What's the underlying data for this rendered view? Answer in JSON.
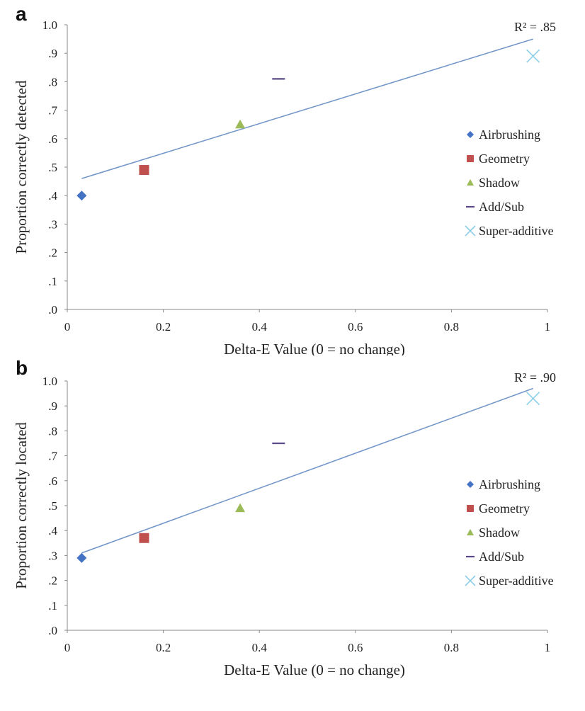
{
  "panels": [
    {
      "letter": "a"
    },
    {
      "letter": "b"
    }
  ],
  "chart_data": [
    {
      "type": "scatter",
      "title": "",
      "xlabel": "Delta-E Value  (0 = no change)",
      "ylabel": "Proportion correctly detected",
      "xlim": [
        0,
        1
      ],
      "ylim": [
        0,
        1
      ],
      "x_ticks": [
        "0",
        "0.2",
        "0.4",
        "0.6",
        "0.8",
        "1"
      ],
      "y_ticks": [
        ".0",
        ".1",
        ".2",
        ".3",
        ".4",
        ".5",
        ".6",
        ".7",
        ".8",
        ".9",
        "1.0"
      ],
      "grid": false,
      "legend_position": "right",
      "series": [
        {
          "name": "Airbrushing",
          "marker": "diamond",
          "color": "#4472C4",
          "x": [
            0.03
          ],
          "y": [
            0.4
          ]
        },
        {
          "name": "Geometry",
          "marker": "square",
          "color": "#C0504D",
          "x": [
            0.16
          ],
          "y": [
            0.49
          ]
        },
        {
          "name": "Shadow",
          "marker": "triangle",
          "color": "#9BBB59",
          "x": [
            0.36
          ],
          "y": [
            0.65
          ]
        },
        {
          "name": "Add/Sub",
          "marker": "dash",
          "color": "#5B4A8B",
          "x": [
            0.44
          ],
          "y": [
            0.81
          ]
        },
        {
          "name": "Super-additive",
          "marker": "x",
          "color": "#8ECFE8",
          "x": [
            0.97
          ],
          "y": [
            0.89
          ]
        }
      ],
      "trendline": {
        "x": [
          0.03,
          0.97
        ],
        "y": [
          0.46,
          0.95
        ],
        "color": "#7397C9",
        "label": "R² = .85"
      }
    },
    {
      "type": "scatter",
      "title": "",
      "xlabel": "Delta-E Value  (0 = no change)",
      "ylabel": "Proportion correctly located",
      "xlim": [
        0,
        1
      ],
      "ylim": [
        0,
        1
      ],
      "x_ticks": [
        "0",
        "0.2",
        "0.4",
        "0.6",
        "0.8",
        "1"
      ],
      "y_ticks": [
        ".0",
        ".1",
        ".2",
        ".3",
        ".4",
        ".5",
        ".6",
        ".7",
        ".8",
        ".9",
        "1.0"
      ],
      "grid": false,
      "legend_position": "right",
      "series": [
        {
          "name": "Airbrushing",
          "marker": "diamond",
          "color": "#4472C4",
          "x": [
            0.03
          ],
          "y": [
            0.29
          ]
        },
        {
          "name": "Geometry",
          "marker": "square",
          "color": "#C0504D",
          "x": [
            0.16
          ],
          "y": [
            0.37
          ]
        },
        {
          "name": "Shadow",
          "marker": "triangle",
          "color": "#9BBB59",
          "x": [
            0.36
          ],
          "y": [
            0.49
          ]
        },
        {
          "name": "Add/Sub",
          "marker": "dash",
          "color": "#5B4A8B",
          "x": [
            0.44
          ],
          "y": [
            0.75
          ]
        },
        {
          "name": "Super-additive",
          "marker": "x",
          "color": "#8ECFE8",
          "x": [
            0.97
          ],
          "y": [
            0.93
          ]
        }
      ],
      "trendline": {
        "x": [
          0.03,
          0.97
        ],
        "y": [
          0.31,
          0.97
        ],
        "color": "#7397C9",
        "label": "R² = .90"
      }
    }
  ]
}
